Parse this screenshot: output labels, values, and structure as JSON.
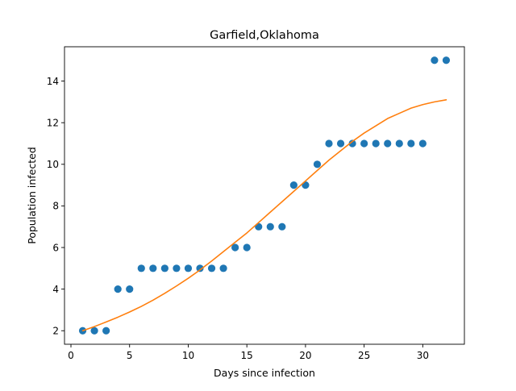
{
  "chart_data": {
    "type": "scatter",
    "title": "Garfield,Oklahoma",
    "xlabel": "Days since infection",
    "ylabel": "Population infected",
    "xlim": [
      -0.55,
      33.55
    ],
    "ylim": [
      1.35,
      15.65
    ],
    "xticks": [
      0,
      5,
      10,
      15,
      20,
      25,
      30
    ],
    "yticks": [
      2,
      4,
      6,
      8,
      10,
      12,
      14
    ],
    "grid": false,
    "series": [
      {
        "kind": "scatter",
        "color": "#1f77b4",
        "x": [
          1,
          2,
          3,
          4,
          5,
          6,
          7,
          8,
          9,
          10,
          11,
          12,
          13,
          14,
          15,
          16,
          17,
          18,
          19,
          20,
          21,
          22,
          23,
          24,
          25,
          26,
          27,
          28,
          29,
          30,
          31,
          32
        ],
        "y": [
          2,
          2,
          2,
          4,
          4,
          5,
          5,
          5,
          5,
          5,
          5,
          5,
          5,
          6,
          6,
          7,
          7,
          7,
          9,
          9,
          10,
          11,
          11,
          11,
          11,
          11,
          11,
          11,
          11,
          11,
          15,
          15
        ]
      },
      {
        "kind": "line",
        "color": "#ff7f0e",
        "x": [
          1,
          2,
          3,
          4,
          5,
          6,
          7,
          8,
          9,
          10,
          11,
          12,
          13,
          14,
          15,
          16,
          17,
          18,
          19,
          20,
          21,
          22,
          23,
          24,
          25,
          26,
          27,
          28,
          29,
          30,
          31,
          32
        ],
        "y": [
          2.0,
          2.2,
          2.42,
          2.65,
          2.9,
          3.17,
          3.47,
          3.8,
          4.15,
          4.52,
          4.92,
          5.35,
          5.8,
          6.25,
          6.7,
          7.2,
          7.7,
          8.2,
          8.7,
          9.2,
          9.7,
          10.2,
          10.65,
          11.1,
          11.5,
          11.85,
          12.2,
          12.45,
          12.7,
          12.87,
          13.0,
          13.1
        ]
      }
    ]
  }
}
